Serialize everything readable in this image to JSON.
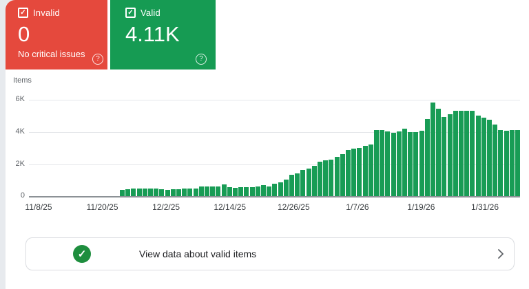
{
  "summary_cards": {
    "invalid": {
      "label": "Invalid",
      "value": "0",
      "subtext": "No critical issues",
      "color": "#E5493D"
    },
    "valid": {
      "label": "Valid",
      "value": "4.11K",
      "color": "#169B53"
    }
  },
  "chart_data": {
    "type": "bar",
    "title": "Items",
    "xlabel": "",
    "ylabel": "Items",
    "ylim": [
      0,
      6000
    ],
    "grid": "horizontal",
    "legend": "none",
    "bar_color": "#189C55",
    "y_tick_labels": [
      "6K",
      "4K",
      "2K",
      "0"
    ],
    "x_tick_labels": [
      "11/8/25",
      "11/20/25",
      "12/2/25",
      "12/14/25",
      "12/26/25",
      "1/7/26",
      "1/19/26",
      "1/31/26"
    ],
    "values": [
      420,
      430,
      470,
      470,
      500,
      500,
      500,
      430,
      415,
      445,
      445,
      470,
      470,
      480,
      620,
      620,
      630,
      620,
      740,
      550,
      545,
      550,
      555,
      560,
      620,
      700,
      620,
      780,
      880,
      1020,
      1335,
      1420,
      1620,
      1730,
      1870,
      2115,
      2230,
      2270,
      2440,
      2615,
      2870,
      2935,
      2980,
      3120,
      3180,
      4100,
      4100,
      4000,
      3900,
      4000,
      4185,
      3960,
      3950,
      4050,
      4740,
      5775,
      5390,
      4900,
      5050,
      5275,
      5275,
      5275,
      5250,
      4950,
      4850,
      4710,
      4425,
      4100,
      4040,
      4100,
      4080
    ]
  },
  "footer": {
    "text": "View data about valid items"
  },
  "icons": {
    "checkbox_check": "✓",
    "help": "?",
    "circle_check": "✓"
  }
}
